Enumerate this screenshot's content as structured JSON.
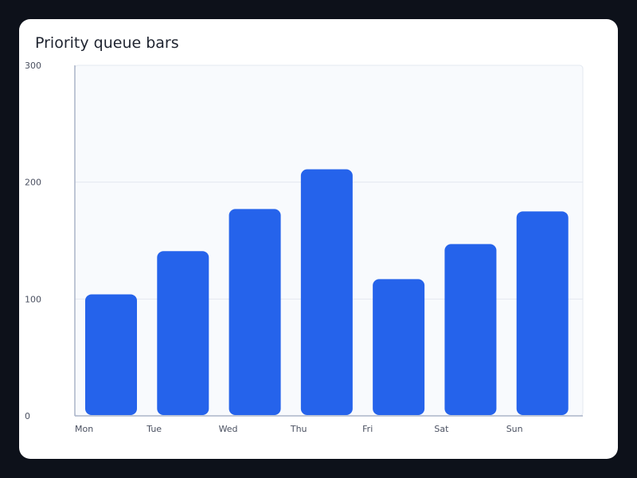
{
  "chart_data": {
    "type": "bar",
    "title": "Priority queue bars",
    "xlabel": "",
    "ylabel": "",
    "categories": [
      "Mon",
      "Tue",
      "Wed",
      "Thu",
      "Fri",
      "Sat",
      "Sun"
    ],
    "values": [
      104,
      141,
      177,
      211,
      117,
      147,
      175
    ],
    "ylim": [
      0,
      300
    ],
    "yticks": [
      "0",
      "100",
      "200",
      "300"
    ],
    "grid": true,
    "legend": "none",
    "colors": {
      "bar": "#2563eb",
      "plot_bg": "#f8fafd",
      "grid": "#e3e8f0",
      "axis": "#aab4c8"
    }
  }
}
